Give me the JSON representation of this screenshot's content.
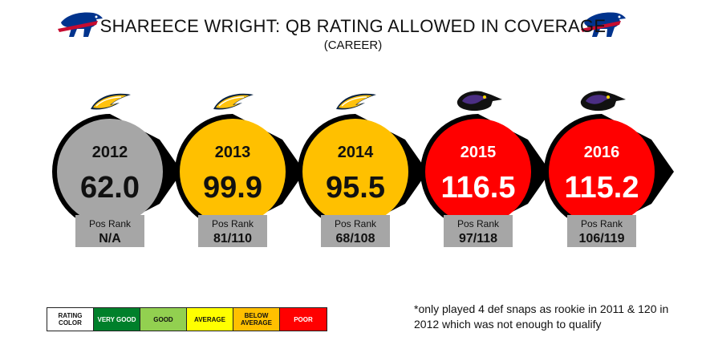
{
  "title": "SHAREECE WRIGHT: QB RATING ALLOWED IN COVERAGE",
  "subtitle": "(CAREER)",
  "colors": {
    "poor": "#ff0000",
    "below_average": "#ffc000",
    "average": "#ffff00",
    "good": "#92d050",
    "very_good": "#00802b",
    "na": "#a6a6a6",
    "rank_box": "#a6a6a6",
    "bills_blue": "#00338d",
    "bills_red": "#c60c30"
  },
  "chart_data": {
    "type": "table",
    "title": "SHAREECE WRIGHT: QB RATING ALLOWED IN COVERAGE",
    "subtitle": "(CAREER)",
    "seasons": [
      {
        "year": "2012",
        "rating": "62.0",
        "rank_label": "Pos Rank",
        "rank": "N/A",
        "color": "#a6a6a6",
        "team_icon": "chargers-icon"
      },
      {
        "year": "2013",
        "rating": "99.9",
        "rank_label": "Pos Rank",
        "rank": "81/110",
        "color": "#ffc000",
        "team_icon": "chargers-icon"
      },
      {
        "year": "2014",
        "rating": "95.5",
        "rank_label": "Pos Rank",
        "rank": "68/108",
        "color": "#ffc000",
        "team_icon": "chargers-icon"
      },
      {
        "year": "2015",
        "rating": "116.5",
        "rank_label": "Pos Rank",
        "rank": "97/118",
        "color": "#ff0000",
        "team_icon": "ravens-icon"
      },
      {
        "year": "2016",
        "rating": "115.2",
        "rank_label": "Pos Rank",
        "rank": "106/119",
        "color": "#ff0000",
        "team_icon": "ravens-icon"
      }
    ]
  },
  "legend": [
    {
      "label": "RATING COLOR",
      "color": "#ffffff",
      "text_color": "#111111"
    },
    {
      "label": "VERY GOOD",
      "color": "#00802b",
      "text_color": "#ffffff"
    },
    {
      "label": "GOOD",
      "color": "#92d050",
      "text_color": "#111111"
    },
    {
      "label": "AVERAGE",
      "color": "#ffff00",
      "text_color": "#111111"
    },
    {
      "label": "BELOW AVERAGE",
      "color": "#ffc000",
      "text_color": "#111111"
    },
    {
      "label": "POOR",
      "color": "#ff0000",
      "text_color": "#ffffff"
    }
  ],
  "footnote": "*only played 4 def snaps as rookie in 2011 & 120 in 2012 which was not enough to qualify"
}
